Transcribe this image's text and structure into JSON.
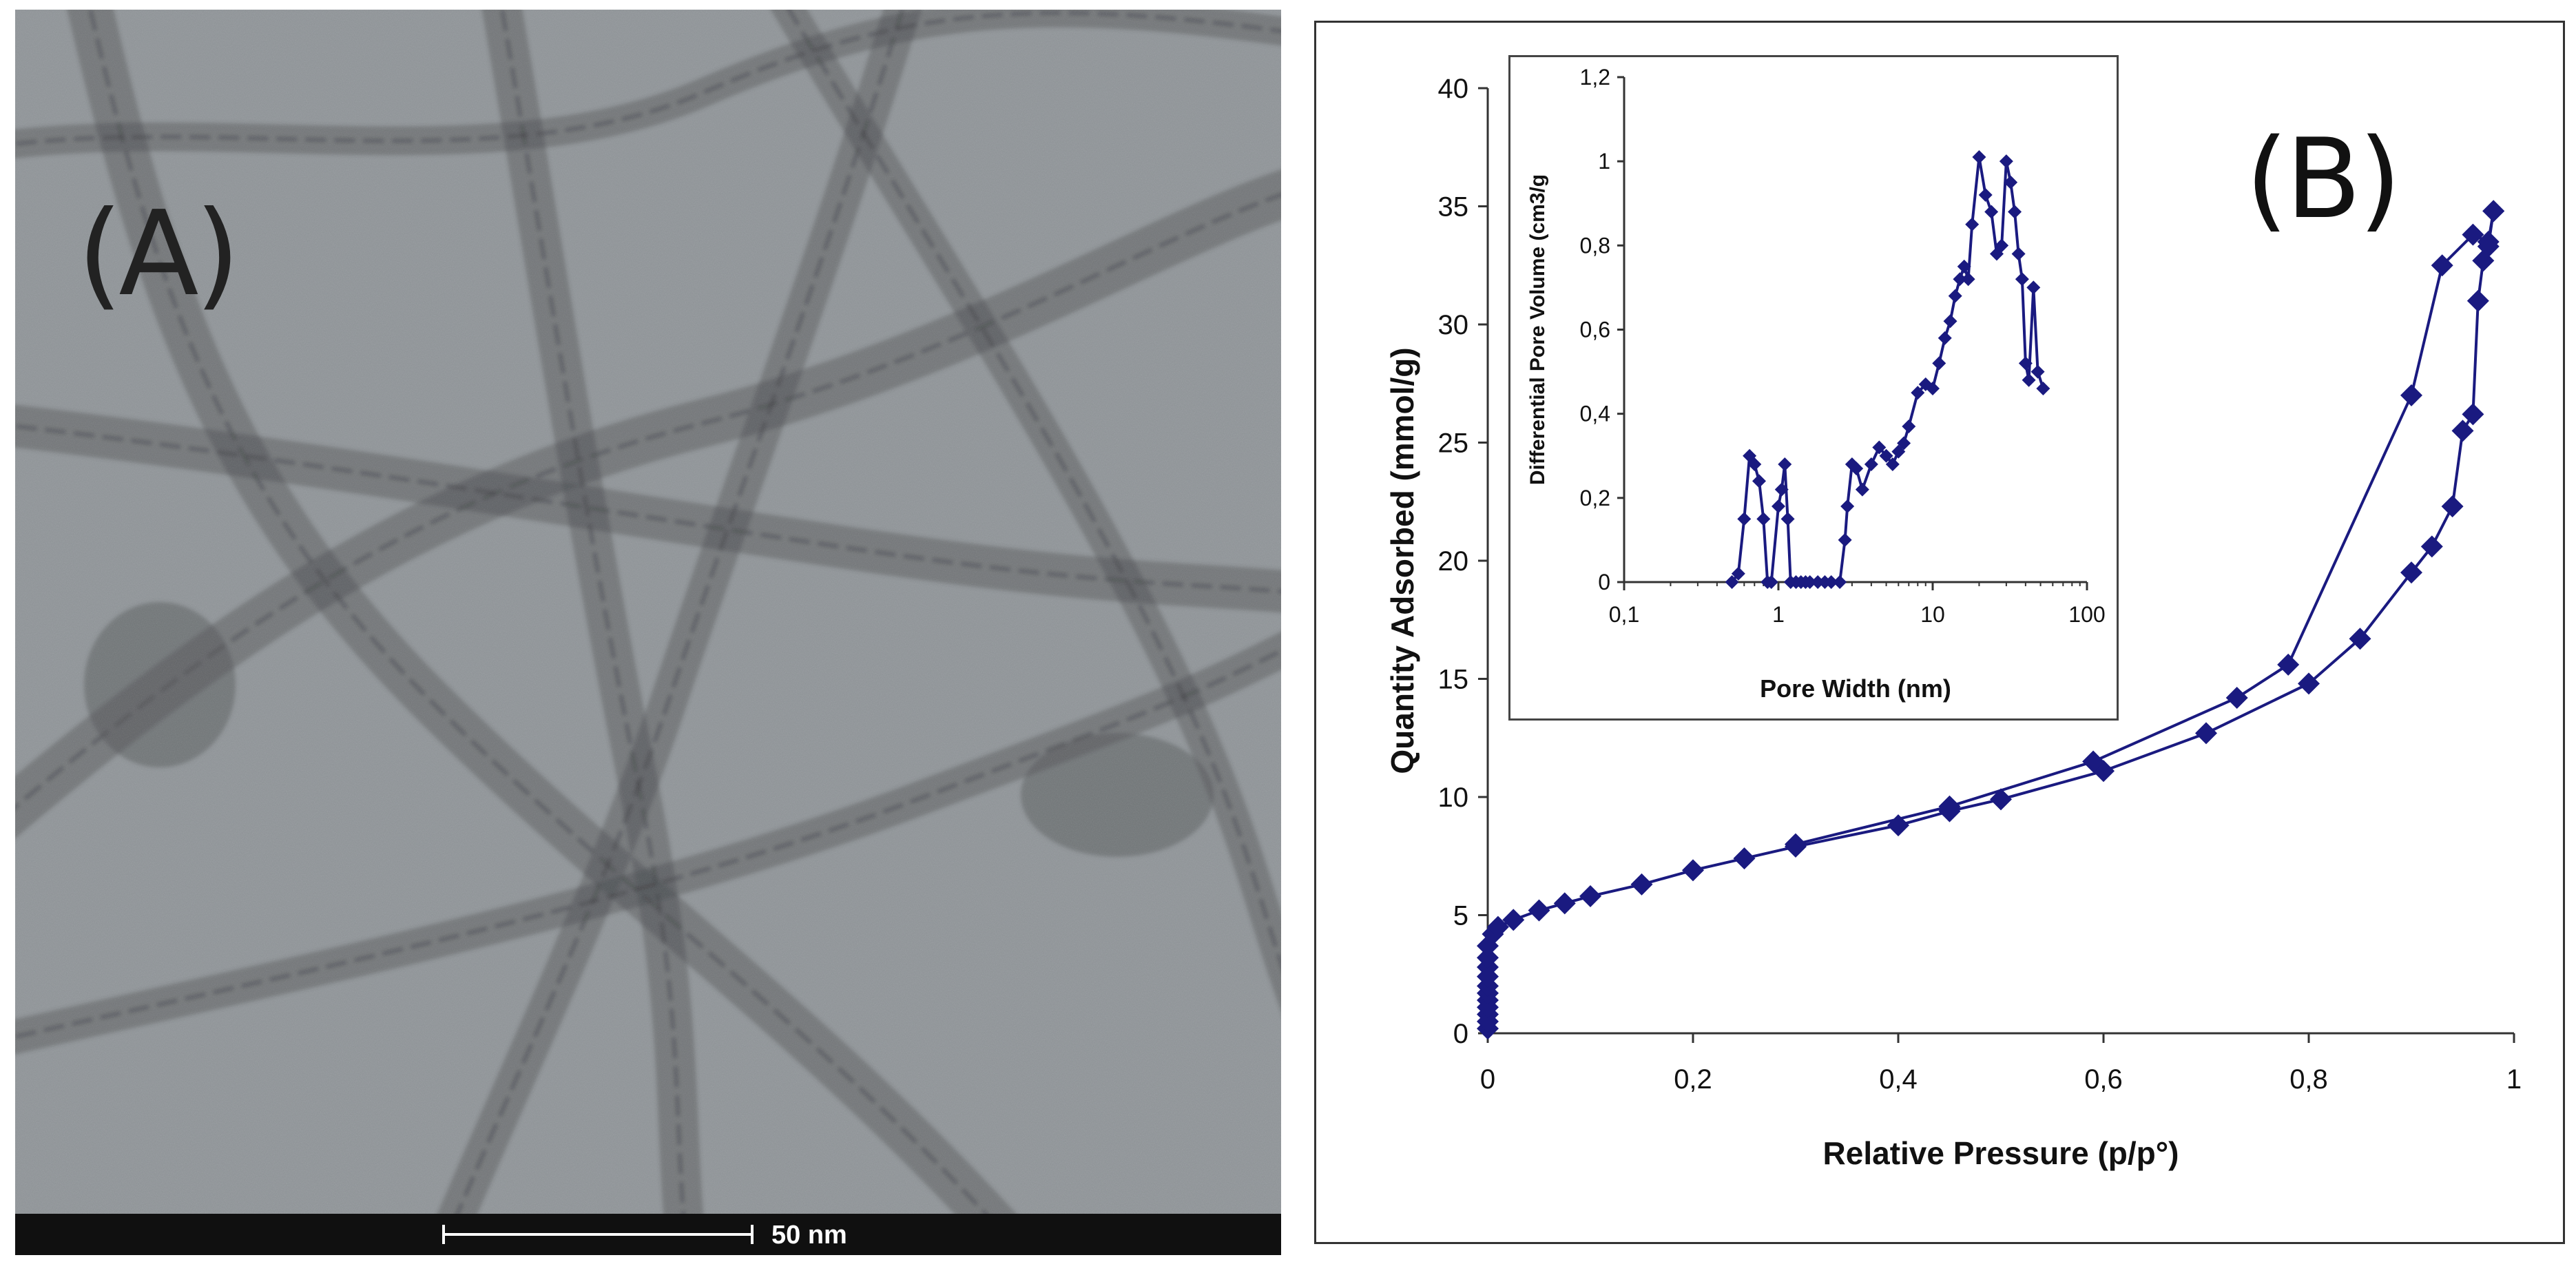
{
  "panel_a": {
    "label": "(A)",
    "scale_bar": "50 nm"
  },
  "panel_b": {
    "label": "(B)"
  },
  "colors": {
    "series": "#1a1a80",
    "axis": "#333333",
    "tem_background": "#8f9498",
    "tube": "#3a3d40"
  },
  "chart_data": [
    {
      "type": "line",
      "xlabel": "Relative Pressure   (p/p°)",
      "ylabel": "Quantity Adsorbed (mmol/g)",
      "xlim": [
        0,
        1
      ],
      "ylim": [
        0,
        40
      ],
      "x_ticks": [
        "0",
        "0,2",
        "0,4",
        "0,6",
        "0,8",
        "1"
      ],
      "y_ticks": [
        "0",
        "5",
        "10",
        "15",
        "20",
        "25",
        "30",
        "35",
        "40"
      ],
      "marker": "diamond",
      "series": [
        {
          "x": [
            0.0,
            0.0,
            0.0,
            0.0,
            0.0,
            0.0,
            0.0,
            0.0,
            0.0,
            0.0,
            0.0,
            0.005,
            0.01,
            0.025,
            0.05,
            0.075,
            0.1,
            0.15,
            0.2,
            0.25,
            0.3,
            0.4,
            0.45,
            0.5,
            0.6,
            0.7,
            0.8,
            0.85,
            0.9,
            0.92,
            0.94,
            0.95,
            0.96,
            0.965,
            0.97,
            0.975,
            0.98
          ],
          "y": [
            0.2,
            0.5,
            0.8,
            1.1,
            1.4,
            1.7,
            2.0,
            2.4,
            2.8,
            3.2,
            3.7,
            4.2,
            4.5,
            4.8,
            5.2,
            5.5,
            5.8,
            6.3,
            6.9,
            7.4,
            7.9,
            8.8,
            9.4,
            9.9,
            11.1,
            12.7,
            14.8,
            16.7,
            19.5,
            20.6,
            22.3,
            25.5,
            26.2,
            31.0,
            32.7,
            33.3,
            34.8
          ]
        },
        {
          "x": [
            0.98,
            0.975,
            0.96,
            0.93,
            0.9,
            0.78,
            0.73,
            0.59,
            0.45,
            0.3
          ],
          "y": [
            34.8,
            33.5,
            33.8,
            32.5,
            27.0,
            15.6,
            14.2,
            11.5,
            9.6,
            8.0
          ]
        }
      ]
    },
    {
      "type": "line",
      "xlabel": "Pore Width (nm)",
      "ylabel": "Differential Pore Volume (cm3/g",
      "x_scale": "log",
      "xlim": [
        0.1,
        100
      ],
      "ylim": [
        0,
        1.2
      ],
      "x_ticks": [
        "0,1",
        "1",
        "10",
        "100"
      ],
      "y_ticks": [
        "0",
        "0,2",
        "0,4",
        "0,6",
        "0,8",
        "1",
        "1,2"
      ],
      "marker": "diamond",
      "series": [
        {
          "x": [
            0.5,
            0.55,
            0.6,
            0.65,
            0.7,
            0.75,
            0.8,
            0.85,
            0.9,
            1.0,
            1.05,
            1.1,
            1.15,
            1.2,
            1.3,
            1.4,
            1.5,
            1.6,
            1.8,
            2.0,
            2.2,
            2.5,
            2.7,
            2.8,
            3.0,
            3.2,
            3.5,
            4.0,
            4.5,
            5.0,
            5.5,
            6.0,
            6.5,
            7.0,
            8.0,
            9.0,
            10.0,
            11.0,
            12.0,
            13.0,
            14.0,
            15.0,
            16.0,
            17.0,
            18.0,
            20.0,
            22.0,
            24.0,
            26.0,
            28.0,
            30.0,
            32.0,
            34.0,
            36.0,
            38.0,
            40.0,
            42.0,
            45.0,
            48.0,
            52.0
          ],
          "y": [
            0.0,
            0.02,
            0.15,
            0.3,
            0.28,
            0.24,
            0.15,
            0.0,
            0.0,
            0.18,
            0.22,
            0.28,
            0.15,
            0.0,
            0.0,
            0.0,
            0.0,
            0.0,
            0.0,
            0.0,
            0.0,
            0.0,
            0.1,
            0.18,
            0.28,
            0.27,
            0.22,
            0.28,
            0.32,
            0.3,
            0.28,
            0.31,
            0.33,
            0.37,
            0.45,
            0.47,
            0.46,
            0.52,
            0.58,
            0.62,
            0.68,
            0.72,
            0.75,
            0.72,
            0.85,
            1.01,
            0.92,
            0.88,
            0.78,
            0.8,
            1.0,
            0.95,
            0.88,
            0.78,
            0.72,
            0.52,
            0.48,
            0.7,
            0.5,
            0.46
          ]
        }
      ]
    }
  ]
}
